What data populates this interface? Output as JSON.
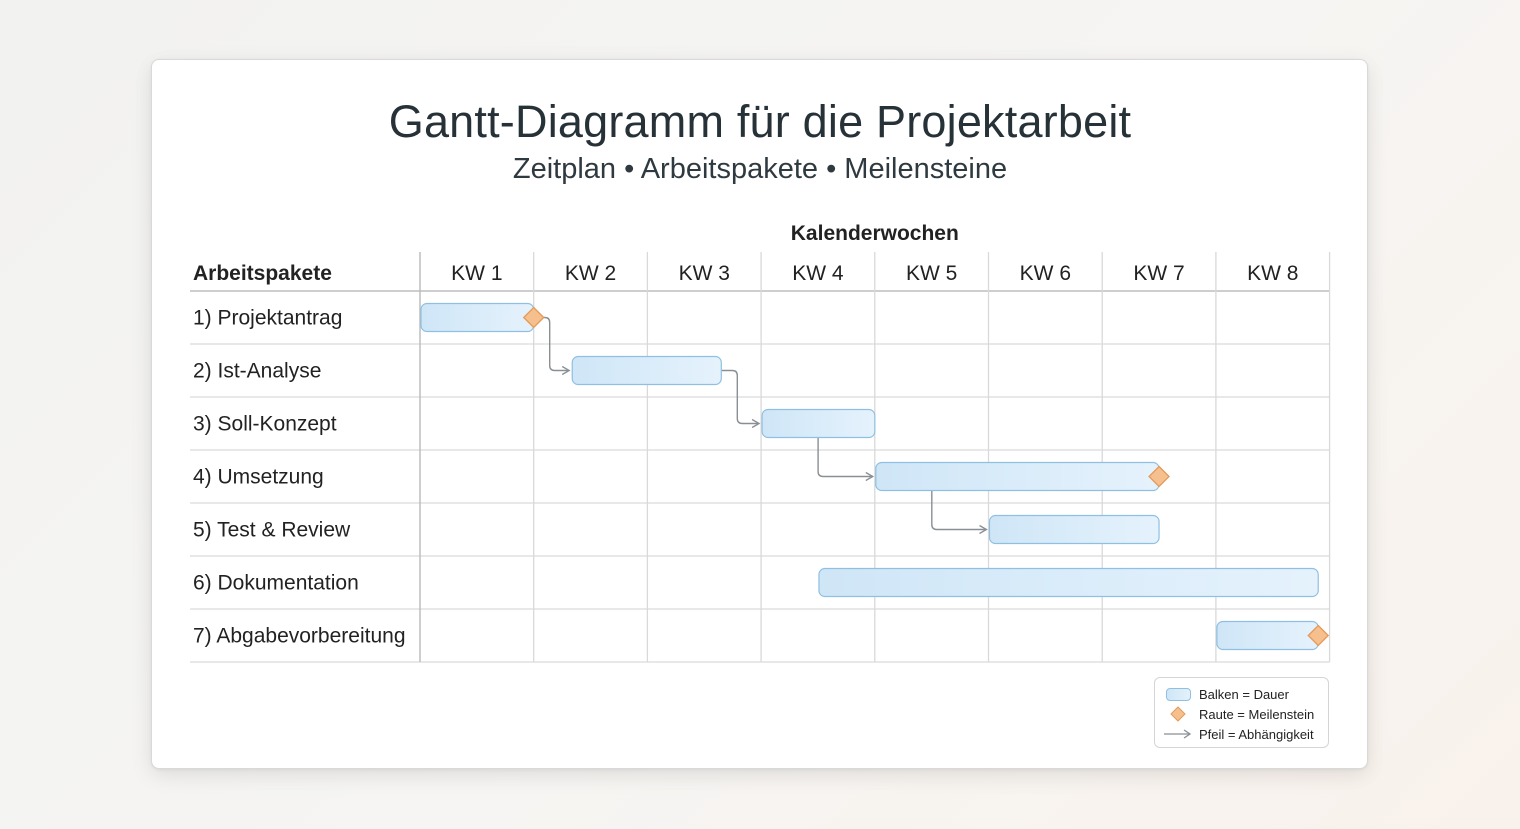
{
  "title": "Gantt-Diagramm für die Projektarbeit",
  "subtitle": "Zeitplan • Arbeitspakete • Meilensteine",
  "colors": {
    "bar_fill_start": "#cfe6f7",
    "bar_fill_end": "#e5f2fc",
    "bar_stroke": "#8fc0e2",
    "milestone_fill": "#f5c08e",
    "milestone_stroke": "#e59a5a",
    "arrow": "#8a8f93",
    "grid": "#d9d9d9"
  },
  "chart_data": {
    "type": "gantt",
    "column_group_label": "Kalenderwochen",
    "row_header": "Arbeitspakete",
    "weeks": [
      "KW 1",
      "KW 2",
      "KW 3",
      "KW 4",
      "KW 5",
      "KW 6",
      "KW 7",
      "KW 8"
    ],
    "tasks": [
      {
        "label": "1) Projektantrag",
        "start_week": 1.0,
        "end_week": 2.0,
        "milestone_week": 2.0
      },
      {
        "label": "2) Ist-Analyse",
        "start_week": 2.33,
        "end_week": 3.65,
        "milestone_week": null
      },
      {
        "label": "3) Soll-Konzept",
        "start_week": 4.0,
        "end_week": 5.0,
        "milestone_week": null
      },
      {
        "label": "4) Umsetzung",
        "start_week": 5.0,
        "end_week": 7.5,
        "milestone_week": 7.5
      },
      {
        "label": "5) Test & Review",
        "start_week": 6.0,
        "end_week": 7.5,
        "milestone_week": null
      },
      {
        "label": "6) Dokumentation",
        "start_week": 4.5,
        "end_week": 8.9,
        "milestone_week": null
      },
      {
        "label": "7) Abgabevorbereitung",
        "start_week": 8.0,
        "end_week": 8.9,
        "milestone_week": 8.9
      }
    ],
    "dependencies": [
      {
        "from": 0,
        "to": 1
      },
      {
        "from": 1,
        "to": 2
      },
      {
        "from": 2,
        "to": 3
      },
      {
        "from": 3,
        "to": 4
      }
    ],
    "legend": [
      {
        "symbol": "bar",
        "text": "Balken = Dauer"
      },
      {
        "symbol": "diamond",
        "text": "Raute = Meilenstein"
      },
      {
        "symbol": "arrow",
        "text": "Pfeil = Abhängigkeit"
      }
    ],
    "legend_position": "bottom-right"
  }
}
